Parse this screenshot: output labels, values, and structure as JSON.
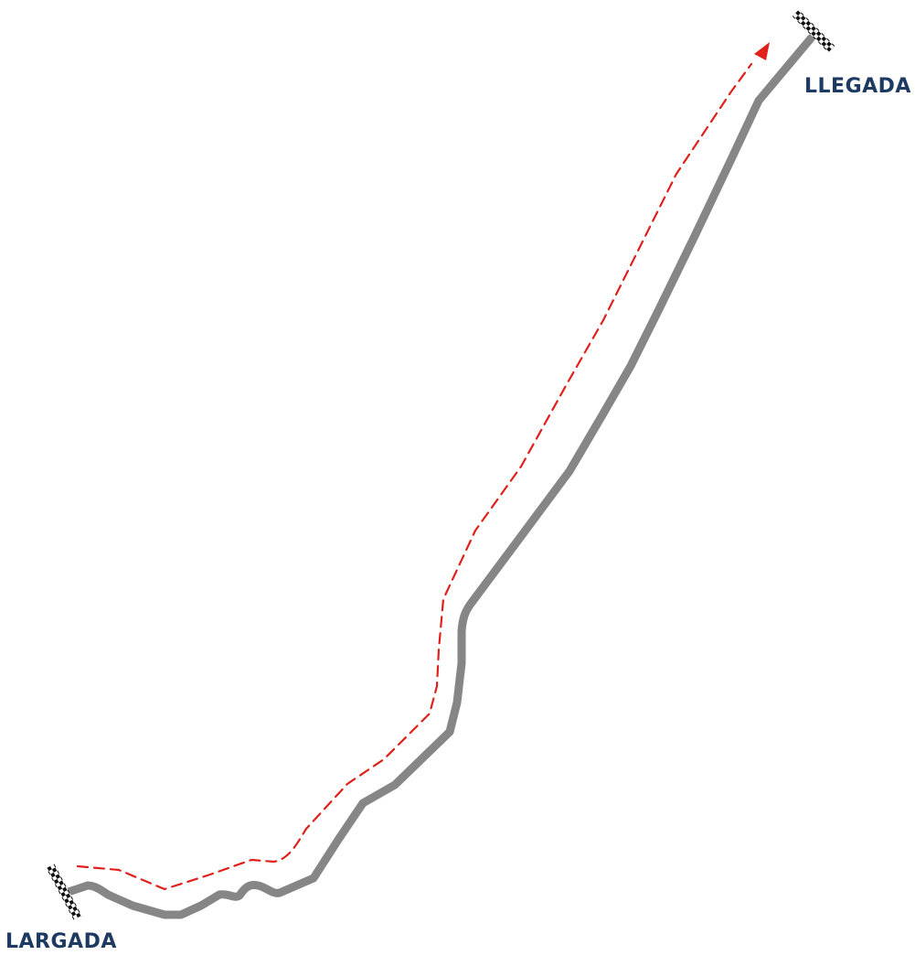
{
  "labels": {
    "finish": "LLEGADA",
    "start": "LARGADA"
  },
  "colors": {
    "label_text": "#1d3a63",
    "track": "#868686",
    "direction_arrow": "#e0201b",
    "flag_dark": "#111111",
    "flag_light": "#ffffff"
  },
  "icons": {
    "start_marker": "checkered-flag-icon",
    "finish_marker": "checkered-flag-icon",
    "direction": "dashed-arrow-icon"
  }
}
